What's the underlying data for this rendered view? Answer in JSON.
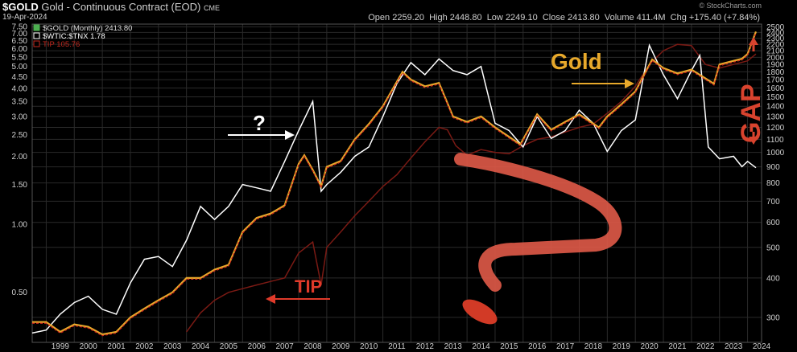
{
  "header": {
    "symbol": "$GOLD",
    "description": "Gold - Continuous Contract (EOD)",
    "exchange": "CME",
    "date": "19-Apr-2024",
    "open_label": "Open",
    "open": "2259.20",
    "high_label": "High",
    "high": "2448.80",
    "low_label": "Low",
    "low": "2249.10",
    "close_label": "Close",
    "close": "2413.80",
    "volume_label": "Volume",
    "volume": "411.4M",
    "chg_label": "Chg",
    "chg": "+175.40 (+7.84%)",
    "watermark": "© StockCharts.com"
  },
  "legend": [
    {
      "label": "$GOLD (Monthly) 2413.80",
      "color": "#e8a92b",
      "checked": true
    },
    {
      "label": "$WTIC:$TNX 1.78",
      "color": "#ffffff",
      "checked": false
    },
    {
      "label": "TIP 105.76",
      "color": "#c0281e",
      "checked": false
    }
  ],
  "annotations": {
    "gold": "Gold",
    "tip": "TIP",
    "question": "?",
    "gap": "GAP"
  },
  "chart_data": {
    "type": "line",
    "scale": "log",
    "x_ticks": [
      "1999",
      "2000",
      "2001",
      "2002",
      "2003",
      "2004",
      "2005",
      "2006",
      "2007",
      "2008",
      "2009",
      "2010",
      "2011",
      "2012",
      "2013",
      "2014",
      "2015",
      "2016",
      "2017",
      "2018",
      "2019",
      "2020",
      "2021",
      "2022",
      "2023",
      "2024"
    ],
    "left_axis": {
      "ticks": [
        7.5,
        7.0,
        6.5,
        6.0,
        5.5,
        5.0,
        4.5,
        4.0,
        3.5,
        3.0,
        2.5,
        2.0,
        1.5,
        1.0,
        0.5
      ],
      "labels": [
        "7.50",
        "7.00",
        "6.50",
        "6.00",
        "5.50",
        "5.00",
        "4.50",
        "4.00",
        "3.50",
        "3.00",
        "2.50",
        "2.00",
        "1.50",
        "1.00",
        "0.50"
      ],
      "ylim": [
        0.3,
        7.7
      ]
    },
    "right_axis": {
      "ticks": [
        2500,
        2400,
        2300,
        2200,
        2100,
        2000,
        1900,
        1800,
        1700,
        1600,
        1500,
        1400,
        1300,
        1200,
        1100,
        1000,
        900,
        800,
        700,
        600,
        500,
        400,
        300
      ],
      "labels": [
        "2500",
        "2400",
        "2300",
        "2200",
        "2100",
        "2000",
        "1900",
        "1800",
        "1700",
        "1600",
        "1500",
        "1400",
        "1300",
        "1200",
        "1100",
        "1000",
        "900",
        "800",
        "700",
        "600",
        "500",
        "400",
        "300"
      ],
      "ylim": [
        250,
        2550
      ]
    },
    "grid": true,
    "series": [
      {
        "name": "$GOLD (Monthly)",
        "axis": "right",
        "color": "#e8a92b",
        "x": [
          1998.5,
          1999.0,
          1999.5,
          2000.0,
          2000.5,
          2001.0,
          2001.5,
          2002.0,
          2002.5,
          2003.0,
          2003.5,
          2004.0,
          2004.5,
          2005.0,
          2005.5,
          2006.0,
          2006.5,
          2007.0,
          2007.5,
          2008.0,
          2008.2,
          2008.5,
          2008.8,
          2009.0,
          2009.5,
          2010.0,
          2010.5,
          2011.0,
          2011.7,
          2012.0,
          2012.5,
          2013.0,
          2013.5,
          2014.0,
          2014.5,
          2015.0,
          2015.9,
          2016.5,
          2017.0,
          2017.5,
          2018.0,
          2018.7,
          2019.0,
          2019.5,
          2020.0,
          2020.6,
          2021.0,
          2021.5,
          2022.0,
          2022.8,
          2023.0,
          2023.5,
          2023.8,
          2024.0,
          2024.3
        ],
        "y": [
          290,
          290,
          270,
          285,
          280,
          265,
          270,
          300,
          320,
          340,
          360,
          400,
          400,
          425,
          440,
          560,
          620,
          640,
          680,
          920,
          980,
          880,
          780,
          900,
          940,
          1100,
          1230,
          1400,
          1800,
          1700,
          1620,
          1660,
          1300,
          1250,
          1300,
          1200,
          1060,
          1320,
          1180,
          1250,
          1320,
          1200,
          1300,
          1420,
          1560,
          1970,
          1850,
          1780,
          1830,
          1650,
          1900,
          1950,
          1980,
          2050,
          2413
        ]
      },
      {
        "name": "$WTIC:$TNX",
        "axis": "left",
        "color": "#ffffff",
        "x": [
          1998.5,
          1999.0,
          1999.5,
          2000.0,
          2000.5,
          2001.0,
          2001.5,
          2002.0,
          2002.5,
          2003.0,
          2003.5,
          2004.0,
          2004.5,
          2005.0,
          2005.5,
          2006.0,
          2006.5,
          2007.0,
          2007.5,
          2008.0,
          2008.5,
          2008.8,
          2009.0,
          2009.5,
          2010.0,
          2010.5,
          2011.0,
          2011.5,
          2012.0,
          2012.5,
          2013.0,
          2013.5,
          2014.0,
          2014.5,
          2015.0,
          2015.5,
          2016.0,
          2016.5,
          2017.0,
          2017.5,
          2018.0,
          2018.5,
          2019.0,
          2019.5,
          2020.0,
          2020.5,
          2021.0,
          2021.5,
          2022.0,
          2022.3,
          2022.6,
          2023.0,
          2023.5,
          2023.8,
          2024.0,
          2024.3
        ],
        "y": [
          0.33,
          0.34,
          0.4,
          0.45,
          0.48,
          0.42,
          0.4,
          0.55,
          0.7,
          0.72,
          0.65,
          0.85,
          1.2,
          1.05,
          1.2,
          1.5,
          1.45,
          1.4,
          1.9,
          2.6,
          3.5,
          1.4,
          1.5,
          1.7,
          2.0,
          2.2,
          3.0,
          4.2,
          5.2,
          4.6,
          5.4,
          4.8,
          4.6,
          5.0,
          2.8,
          2.6,
          2.2,
          3.0,
          2.4,
          2.6,
          3.2,
          2.8,
          2.1,
          2.6,
          2.9,
          6.2,
          4.6,
          3.6,
          4.8,
          5.6,
          2.2,
          1.95,
          2.0,
          1.8,
          1.9,
          1.78
        ]
      },
      {
        "name": "TIP",
        "axis": "right",
        "color": "#7a1a14",
        "x": [
          2004.0,
          2004.5,
          2005.0,
          2005.5,
          2006.0,
          2006.5,
          2007.0,
          2007.5,
          2008.0,
          2008.5,
          2008.8,
          2009.0,
          2009.5,
          2010.0,
          2010.5,
          2011.0,
          2011.5,
          2012.0,
          2012.5,
          2013.0,
          2013.3,
          2013.6,
          2014.0,
          2014.5,
          2015.0,
          2015.5,
          2016.0,
          2016.5,
          2017.0,
          2017.5,
          2018.0,
          2018.5,
          2019.0,
          2019.5,
          2020.0,
          2020.5,
          2021.0,
          2021.5,
          2022.0,
          2022.5,
          2023.0,
          2023.5,
          2024.0,
          2024.3
        ],
        "y": [
          270,
          310,
          340,
          360,
          370,
          380,
          390,
          400,
          480,
          520,
          380,
          500,
          560,
          630,
          700,
          780,
          850,
          960,
          1080,
          1200,
          1180,
          1050,
          980,
          1020,
          1000,
          990,
          1050,
          1100,
          1120,
          1160,
          1200,
          1230,
          1330,
          1450,
          1620,
          1900,
          2100,
          2200,
          2180,
          1900,
          1850,
          1900,
          1950,
          2050
        ]
      }
    ]
  }
}
